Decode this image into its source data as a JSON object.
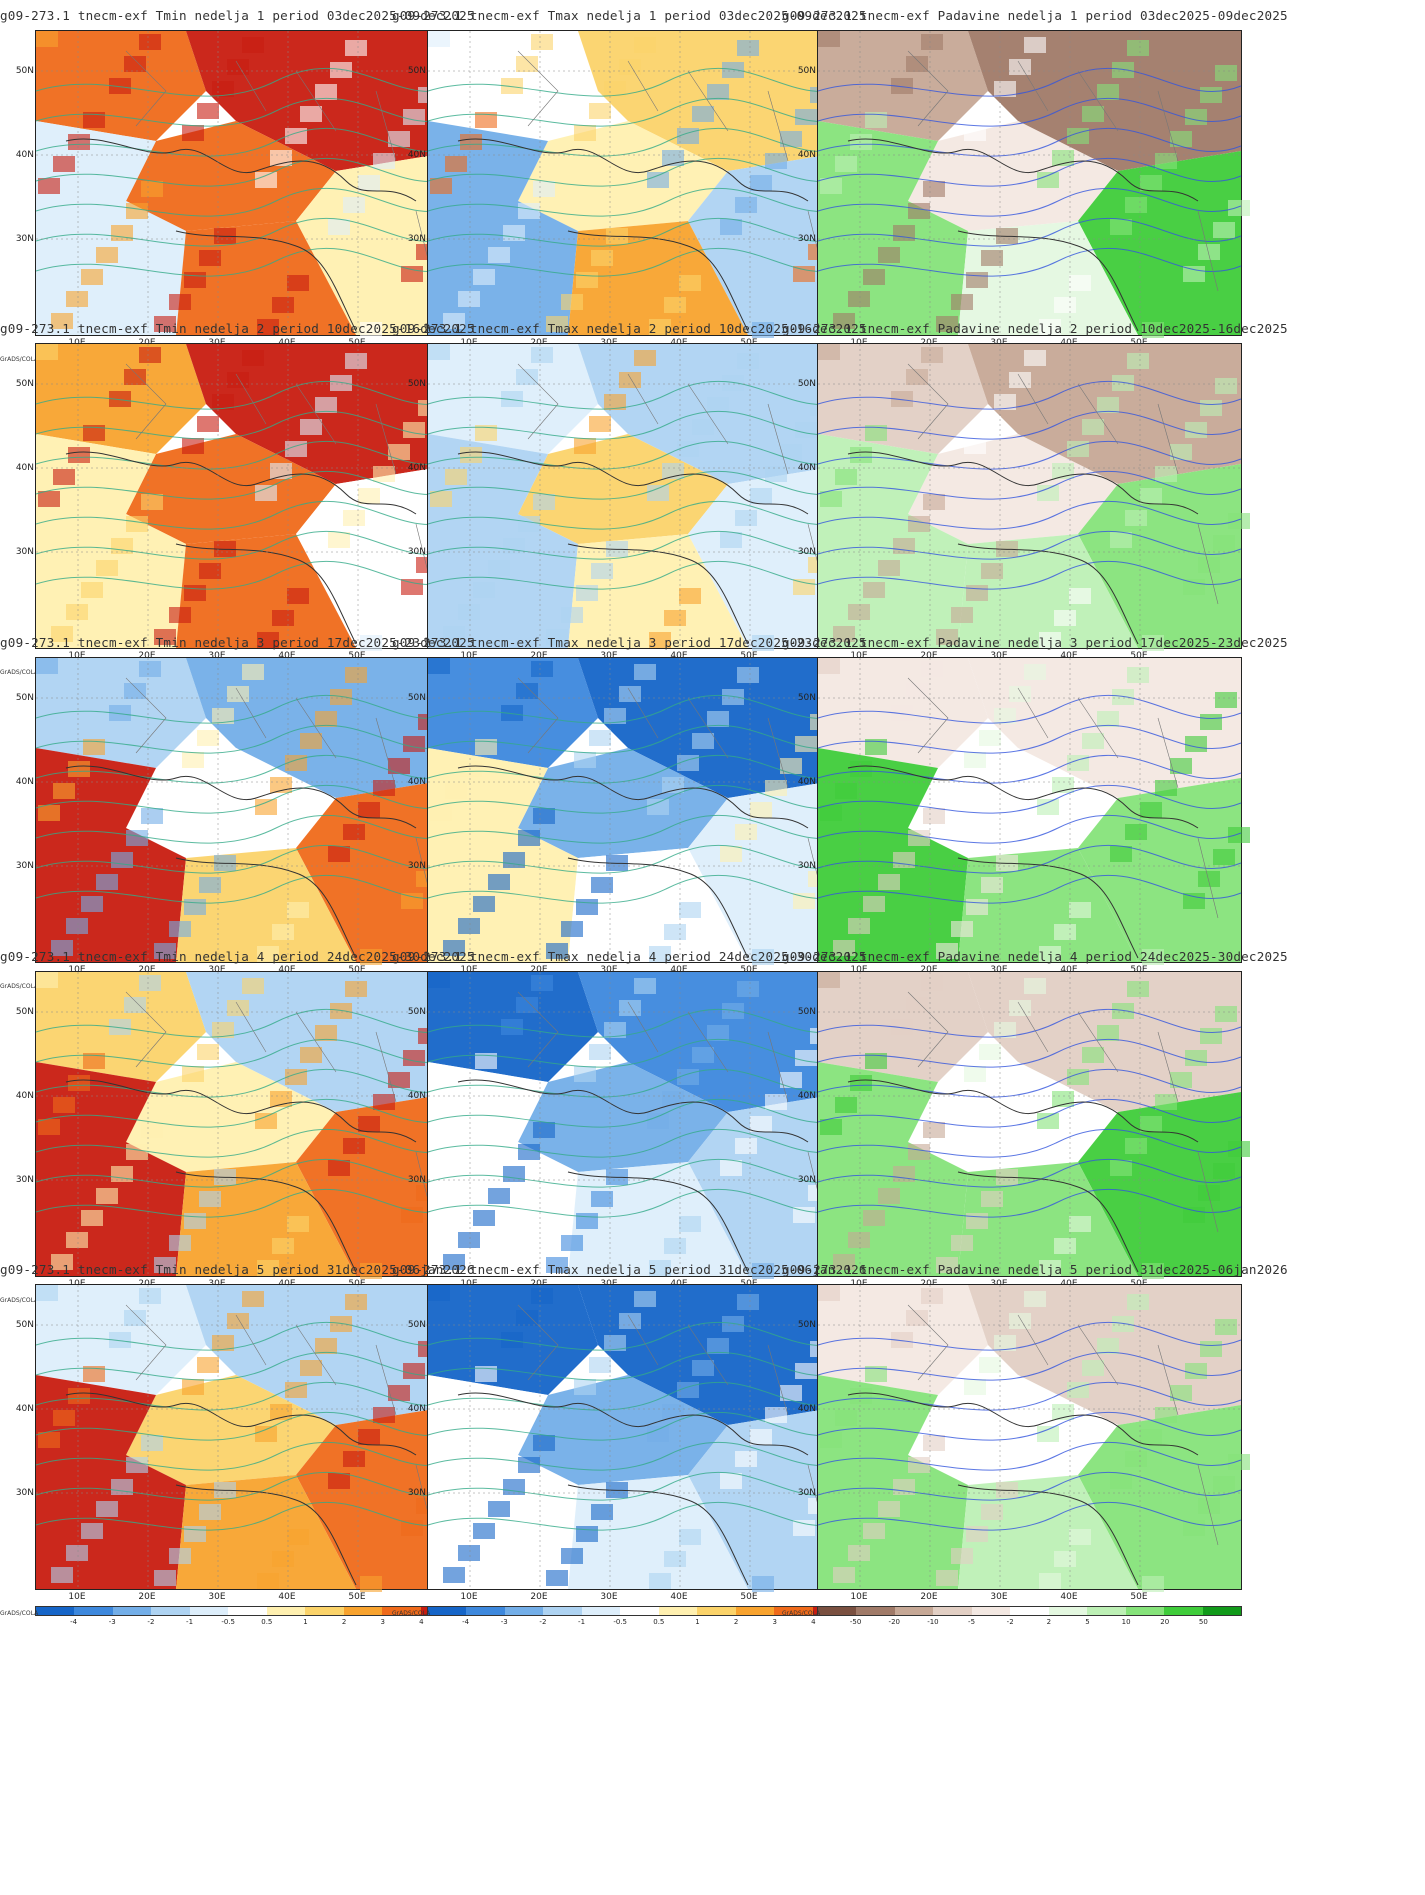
{
  "brand": "GrADS/COLA",
  "lat_labels": [
    "50N",
    "40N",
    "30N"
  ],
  "lon_labels": [
    "10E",
    "20E",
    "30E",
    "40E",
    "50E"
  ],
  "temp_scale": {
    "labels": [
      "-4",
      "-3",
      "-2",
      "-1",
      "-0.5",
      "0.5",
      "1",
      "2",
      "3",
      "4"
    ],
    "colors": [
      "#1565c8",
      "#3d88dd",
      "#73aee8",
      "#aed3f2",
      "#ddeefb",
      "#ffffff",
      "#fff0b0",
      "#fbd36a",
      "#f8a32e",
      "#ef6a1a",
      "#c81c10"
    ]
  },
  "precip_scale": {
    "labels": [
      "-50",
      "-20",
      "-10",
      "-5",
      "-2",
      "2",
      "5",
      "10",
      "20",
      "50"
    ],
    "colors": [
      "#7a5040",
      "#a07a68",
      "#c6a896",
      "#e2cfc4",
      "#f3e8e2",
      "#ffffff",
      "#e4f8e0",
      "#bdf0b5",
      "#86e37a",
      "#3fcc3a",
      "#119a1a"
    ]
  },
  "rows": [
    {
      "tmin": "g09-273.1 tnecm-exf Tmin nedelja 1 period 03dec2025-09dec2025",
      "tmax": "g09-273.1 tnecm-exf Tmax nedelja 1 period 03dec2025-09dec2025",
      "precip": "g09-273.1 tnecm-exf Padavine nedelja 1 period 03dec2025-09dec2025"
    },
    {
      "tmin": "g09-273.1 tnecm-exf Tmin nedelja 2 period 10dec2025-16dec2025",
      "tmax": "g09-273.1 tnecm-exf Tmax nedelja 2 period 10dec2025-16dec2025",
      "precip": "g09-273.1 tnecm-exf Padavine nedelja 2 period 10dec2025-16dec2025"
    },
    {
      "tmin": "g09-273.1 tnecm-exf Tmin nedelja 3 period 17dec2025-23dec2025",
      "tmax": "g09-273.1 tnecm-exf Tmax nedelja 3 period 17dec2025-23dec2025",
      "precip": "g09-273.1 tnecm-exf Padavine nedelja 3 period 17dec2025-23dec2025"
    },
    {
      "tmin": "g09-273.1 tnecm-exf Tmin nedelja 4 period 24dec2025-30dec2025",
      "tmax": "g09-273.1 tnecm-exf Tmax nedelja 4 period 24dec2025-30dec2025",
      "precip": "g09-273.1 tnecm-exf Padavine nedelja 4 period 24dec2025-30dec2025"
    },
    {
      "tmin": "g09-273.1 tnecm-exf Tmin nedelja 5 period 31dec2025-06jan2026",
      "tmax": "g09-273.1 tnecm-exf Tmax nedelja 5 period 31dec2025-06jan2026",
      "precip": "g09-273.1 tnecm-exf Padavine nedelja 5 period 31dec2025-06jan2026"
    }
  ]
}
